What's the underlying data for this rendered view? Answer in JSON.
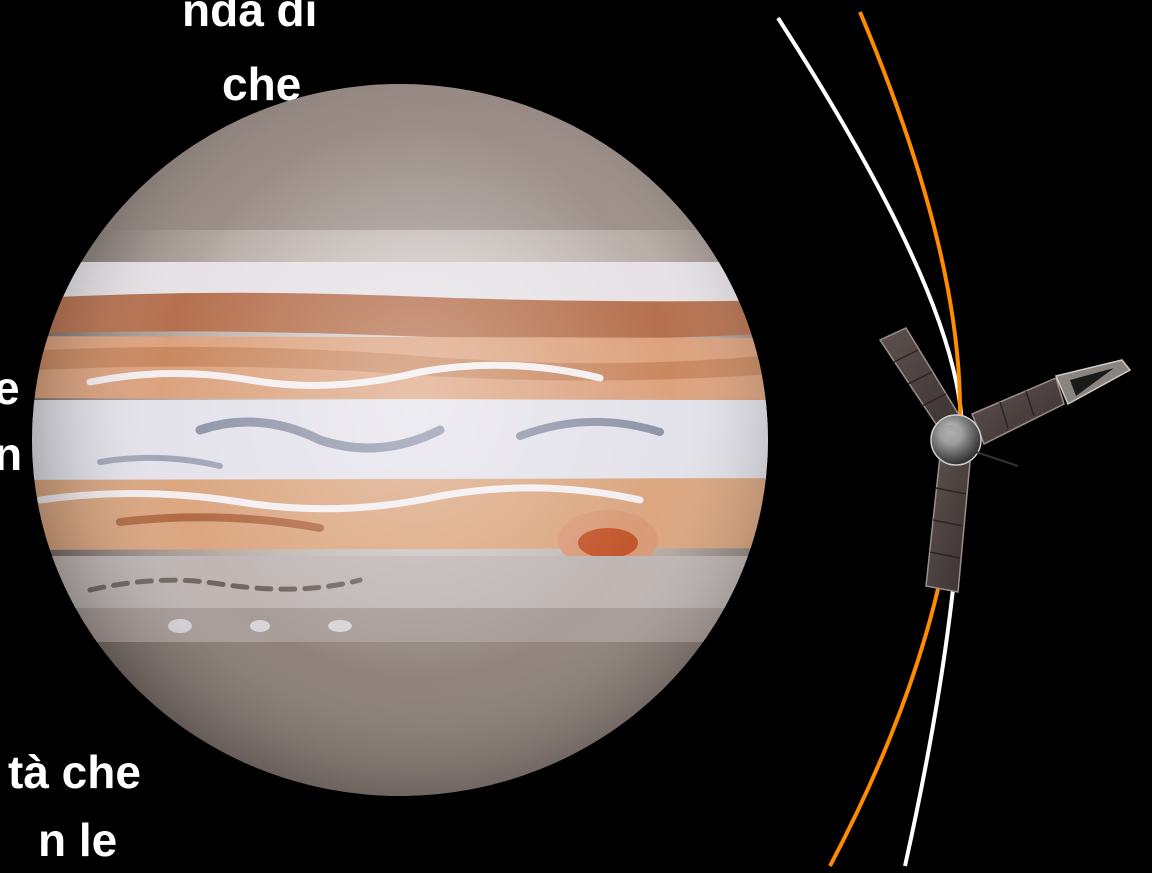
{
  "text_fragments": [
    {
      "id": "frag-1",
      "text": "nda di"
    },
    {
      "id": "frag-2",
      "text": "che"
    },
    {
      "id": "frag-3",
      "text": "e"
    },
    {
      "id": "frag-4",
      "text": "n"
    },
    {
      "id": "frag-5",
      "text": "tà che"
    },
    {
      "id": "frag-6",
      "text": "n le"
    }
  ],
  "colors": {
    "background": "#000000",
    "text": "#ffffff",
    "orbit_orange": "#ff8c00",
    "orbit_white": "#ffffff"
  },
  "illustration": {
    "planet": "jupiter",
    "spacecraft": "juno-probe"
  }
}
